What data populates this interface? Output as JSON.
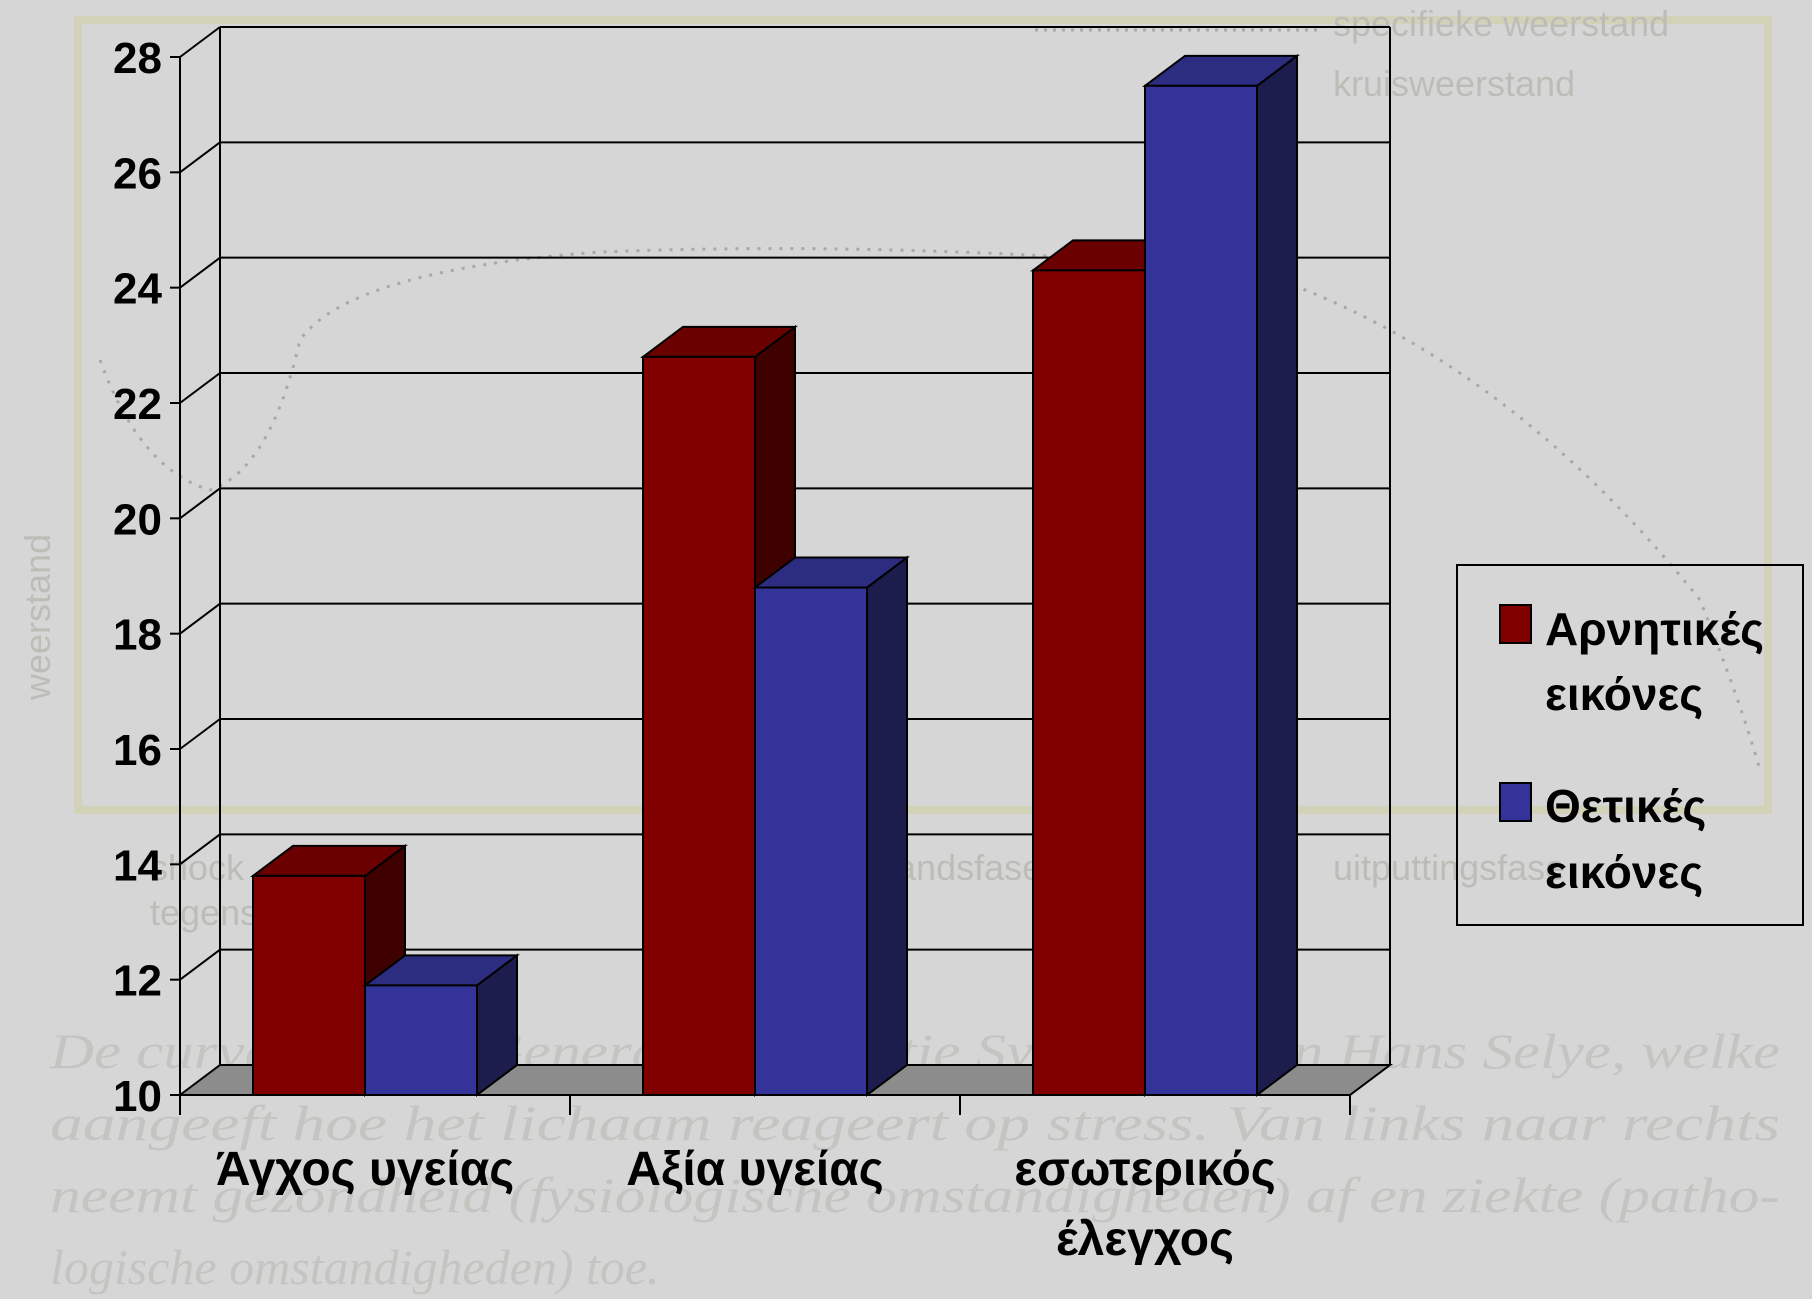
{
  "background": {
    "legend_lines": [
      "specifieke weerstand",
      "kruisweerstand"
    ],
    "ylabel": "weerstand",
    "phase_labels": [
      "shock",
      "tegenschock",
      "weerstandsfase",
      "uitputtingsfase"
    ],
    "caption_lines": [
      "De curve van het Generaal Adaptatie Syndroom van Hans Selye, welke",
      "aangeeft hoe het lichaam reageert op stress. Van links naar rechts",
      "neemt gezondheid (fysiologische omstandigheden) af en ziekte (patho-",
      "logische omstandigheden) toe."
    ]
  },
  "chart_data": {
    "type": "bar",
    "categories": [
      [
        "Άγχος υγείας"
      ],
      [
        "Αξία υγείας"
      ],
      [
        "εσωτερικός",
        "έλεγχος"
      ]
    ],
    "series": [
      {
        "name": "Αρνητικές εικόνες",
        "name_lines": [
          "Αρνητικές",
          "εικόνες"
        ],
        "values": [
          13.8,
          22.8,
          24.3
        ]
      },
      {
        "name": "Θετικές εικόνες",
        "name_lines": [
          "Θετικές",
          "εικόνες"
        ],
        "values": [
          11.9,
          18.8,
          27.5
        ]
      }
    ],
    "ylim": [
      10,
      28
    ],
    "yticks": [
      10,
      12,
      14,
      16,
      18,
      20,
      22,
      24,
      26,
      28
    ],
    "grid": true,
    "legend_position": "right",
    "colors": {
      "series": [
        "#800000",
        "#333399"
      ],
      "series_top": [
        "#6b0000",
        "#2c2c80"
      ],
      "series_side": [
        "#3f0000",
        "#1d1d4d"
      ],
      "floor": "#8c8c8c",
      "grid": "#000000"
    }
  }
}
